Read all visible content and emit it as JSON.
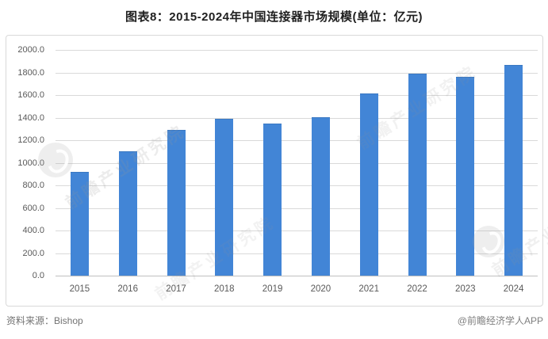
{
  "title": "图表8：2015-2024年中国连接器市场规模(单位：亿元)",
  "footer": {
    "source": "资料来源：Bishop",
    "credit": "@前瞻经济学人APP"
  },
  "watermark": {
    "text": "前瞻产业研究院"
  },
  "colors": {
    "bar": "#4285d6",
    "bar_edge": "#3a78c2",
    "grid": "#d9d9d9",
    "axis_line": "#bfbfbf",
    "tick_text": "#595959",
    "title_text": "#1f1f1f",
    "footer_text": "#737373",
    "panel_border": "#d9d9d9",
    "background": "#ffffff"
  },
  "chart_data": {
    "type": "bar",
    "title": "图表8：2015-2024年中国连接器市场规模(单位：亿元)",
    "unit": "亿元",
    "categories": [
      "2015",
      "2016",
      "2017",
      "2018",
      "2019",
      "2020",
      "2021",
      "2022",
      "2023",
      "2024"
    ],
    "values": [
      915,
      1095,
      1285,
      1380,
      1340,
      1395,
      1610,
      1780,
      1755,
      1860
    ],
    "xlabel": "",
    "ylabel": "",
    "ylim": [
      0,
      2000
    ],
    "y_tick_step": 200,
    "y_ticks": [
      "2000.0",
      "1800.0",
      "1600.0",
      "1400.0",
      "1200.0",
      "1000.0",
      "800.0",
      "600.0",
      "400.0",
      "200.0",
      "0.0"
    ],
    "grid": true,
    "legend": false
  }
}
